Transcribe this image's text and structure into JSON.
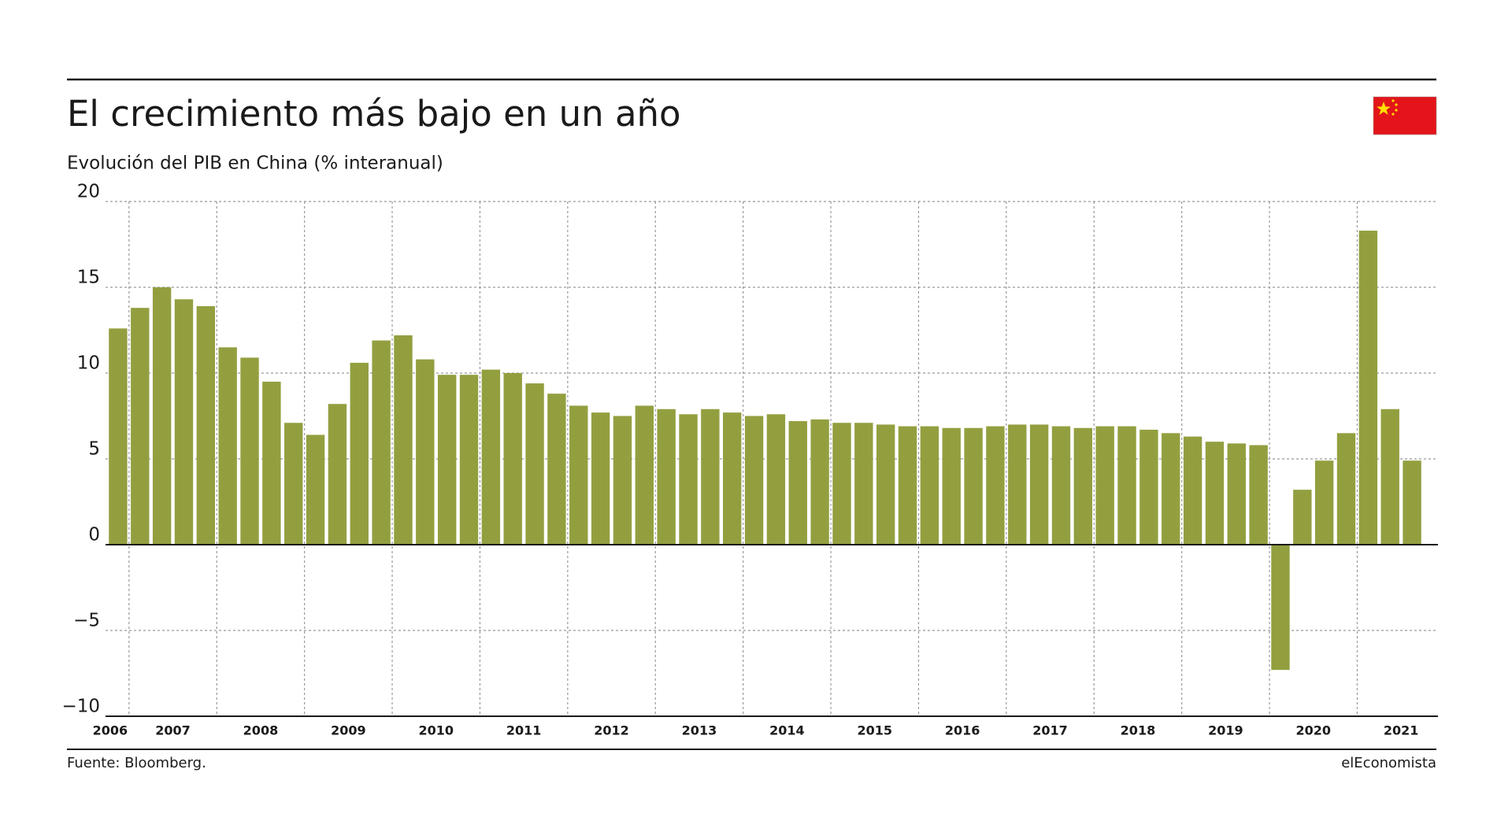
{
  "chart_data": {
    "type": "bar",
    "title": "El crecimiento más bajo en un año",
    "subtitle": "Evolución del PIB en China (% interanual)",
    "source": "Fuente: Bloomberg.",
    "brand": "elEconomista",
    "color": "#939f3f",
    "grid": true,
    "categories": [
      "2006",
      null,
      "2007",
      null,
      null,
      null,
      "2008",
      null,
      null,
      null,
      "2009",
      null,
      null,
      null,
      "2010",
      null,
      null,
      null,
      "2011",
      null,
      null,
      null,
      "2012",
      null,
      null,
      null,
      "2013",
      null,
      null,
      null,
      "2014",
      null,
      null,
      null,
      "2015",
      null,
      null,
      null,
      "2016",
      null,
      null,
      null,
      "2017",
      null,
      null,
      null,
      "2018",
      null,
      null,
      null,
      "2019",
      null,
      null,
      null,
      "2020",
      null,
      null,
      null,
      "2021",
      null
    ],
    "values": [
      12.6,
      13.8,
      15.0,
      14.3,
      13.9,
      11.5,
      10.9,
      9.5,
      7.1,
      6.4,
      8.2,
      10.6,
      11.9,
      12.2,
      10.8,
      9.9,
      9.9,
      10.2,
      10.0,
      9.4,
      8.8,
      8.1,
      7.7,
      7.5,
      8.1,
      7.9,
      7.6,
      7.9,
      7.7,
      7.5,
      7.6,
      7.2,
      7.3,
      7.1,
      7.1,
      7.0,
      6.9,
      6.9,
      6.8,
      6.8,
      6.9,
      7.0,
      7.0,
      6.9,
      6.8,
      6.9,
      6.9,
      6.7,
      6.5,
      6.3,
      6.0,
      5.9,
      5.8,
      -7.3,
      3.2,
      4.9,
      6.5,
      18.3,
      7.9,
      4.9
    ],
    "ylim": [
      -10,
      20
    ],
    "yticks": [
      {
        "value": -10,
        "label": "−10"
      },
      {
        "value": -5,
        "label": "−5"
      },
      0,
      5,
      10,
      15,
      20
    ]
  }
}
